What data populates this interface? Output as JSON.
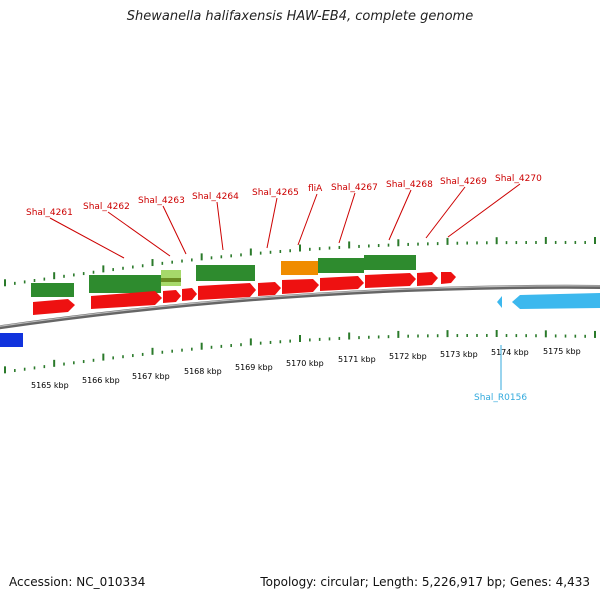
{
  "title": "Shewanella halifaxensis HAW-EB4, complete genome",
  "footer": {
    "accession": "Accession: NC_010334",
    "stats": "Topology: circular; Length: 5,226,917 bp; Genes: 4,433"
  },
  "colors": {
    "cds": "#ee1111",
    "gene": "#2e8b2e",
    "gene_light": "#a6d96a",
    "orange_gene": "#f08c00",
    "rna_gene": "#3cb8ee",
    "blue_feature": "#1133dd",
    "backbone": "#888888",
    "gc_tick": "#2a7a2a",
    "gene_label": "#cc0000",
    "rna_label": "#33aadd"
  },
  "scale_labels": [
    "5165 kbp",
    "5166 kbp",
    "5167 kbp",
    "5168 kbp",
    "5169 kbp",
    "5170 kbp",
    "5171 kbp",
    "5172 kbp",
    "5173 kbp",
    "5174 kbp",
    "5175 kbp"
  ],
  "gene_labels": [
    "Shal_4261",
    "Shal_4262",
    "Shal_4263",
    "Shal_4264",
    "Shal_4265",
    "fliA",
    "Shal_4267",
    "Shal_4268",
    "Shal_4269",
    "Shal_4270"
  ],
  "rna_label": "Shal_R0156"
}
